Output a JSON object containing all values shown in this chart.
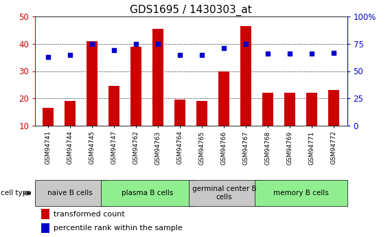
{
  "title": "GDS1695 / 1430303_at",
  "samples": [
    "GSM94741",
    "GSM94744",
    "GSM94745",
    "GSM94747",
    "GSM94762",
    "GSM94763",
    "GSM94764",
    "GSM94765",
    "GSM94766",
    "GSM94767",
    "GSM94768",
    "GSM94769",
    "GSM94771",
    "GSM94772"
  ],
  "bar_values": [
    16.5,
    19.0,
    41.0,
    24.5,
    39.0,
    45.5,
    19.5,
    19.0,
    30.0,
    46.5,
    22.0,
    22.0,
    22.0,
    23.0
  ],
  "percentile_values": [
    63,
    65,
    75,
    69,
    75,
    75,
    65,
    65,
    71,
    75,
    66,
    66,
    66,
    67
  ],
  "ylim_left": [
    10,
    50
  ],
  "ylim_right": [
    0,
    100
  ],
  "yticks_left": [
    10,
    20,
    30,
    40,
    50
  ],
  "yticks_right": [
    0,
    25,
    50,
    75,
    100
  ],
  "bar_color": "#CC0000",
  "scatter_color": "#0000CC",
  "cell_groups": [
    {
      "label": "naive B cells",
      "start": 0,
      "end": 3,
      "color": "#C8C8C8"
    },
    {
      "label": "plasma B cells",
      "start": 3,
      "end": 7,
      "color": "#90EE90"
    },
    {
      "label": "germinal center B\ncells",
      "start": 7,
      "end": 10,
      "color": "#C8C8C8"
    },
    {
      "label": "memory B cells",
      "start": 10,
      "end": 14,
      "color": "#90EE90"
    }
  ],
  "legend_bar_label": "transformed count",
  "legend_scatter_label": "percentile rank within the sample",
  "cell_type_label": "cell type",
  "left_tick_color": "#CC0000",
  "right_tick_color": "#0000CC",
  "title_fontsize": 11,
  "tick_label_fontsize": 6.5,
  "group_label_fontsize": 7.5,
  "legend_fontsize": 8
}
